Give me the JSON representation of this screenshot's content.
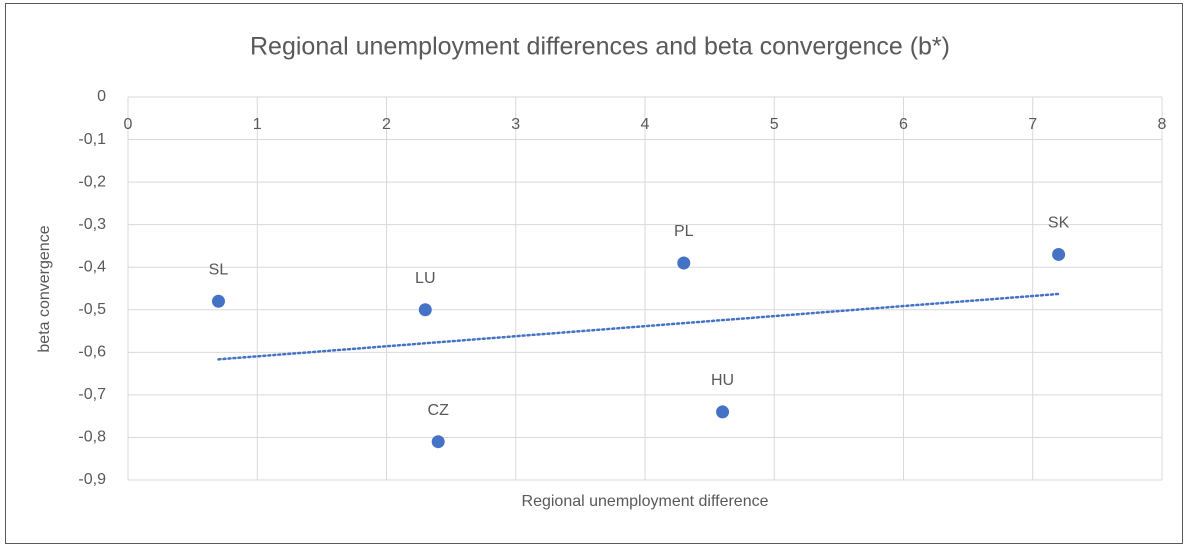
{
  "chart_data": {
    "type": "scatter",
    "title": "Regional unemployment differences and beta convergence (b*)",
    "x_label": "Regional unemployment difference",
    "y_label": "beta convergence",
    "x": [
      0.7,
      2.3,
      2.4,
      4.3,
      4.6,
      7.2
    ],
    "values": [
      -0.48,
      -0.5,
      -0.81,
      -0.39,
      -0.74,
      -0.37
    ],
    "labels": [
      "SL",
      "LU",
      "CZ",
      "PL",
      "HU",
      "SK"
    ],
    "color": "#4472c4",
    "trendline": "linear",
    "grid": true,
    "xlim": [
      0,
      8
    ],
    "xticks": [
      0,
      1,
      2,
      3,
      4,
      5,
      6,
      7,
      8
    ],
    "ylim": [
      -0.9,
      0
    ],
    "yticks": [
      0,
      {
        "value": -0.1,
        "label": "-0,1"
      },
      {
        "value": -0.2,
        "label": "-0,2"
      },
      {
        "value": -0.3,
        "label": "-0,3"
      },
      {
        "value": -0.4,
        "label": "-0,4"
      },
      {
        "value": -0.5,
        "label": "-0,5"
      },
      {
        "value": -0.6,
        "label": "-0,6"
      },
      {
        "value": -0.7,
        "label": "-0,7"
      },
      {
        "value": -0.8,
        "label": "-0,8"
      },
      {
        "value": -0.9,
        "label": "-0,9"
      }
    ]
  }
}
